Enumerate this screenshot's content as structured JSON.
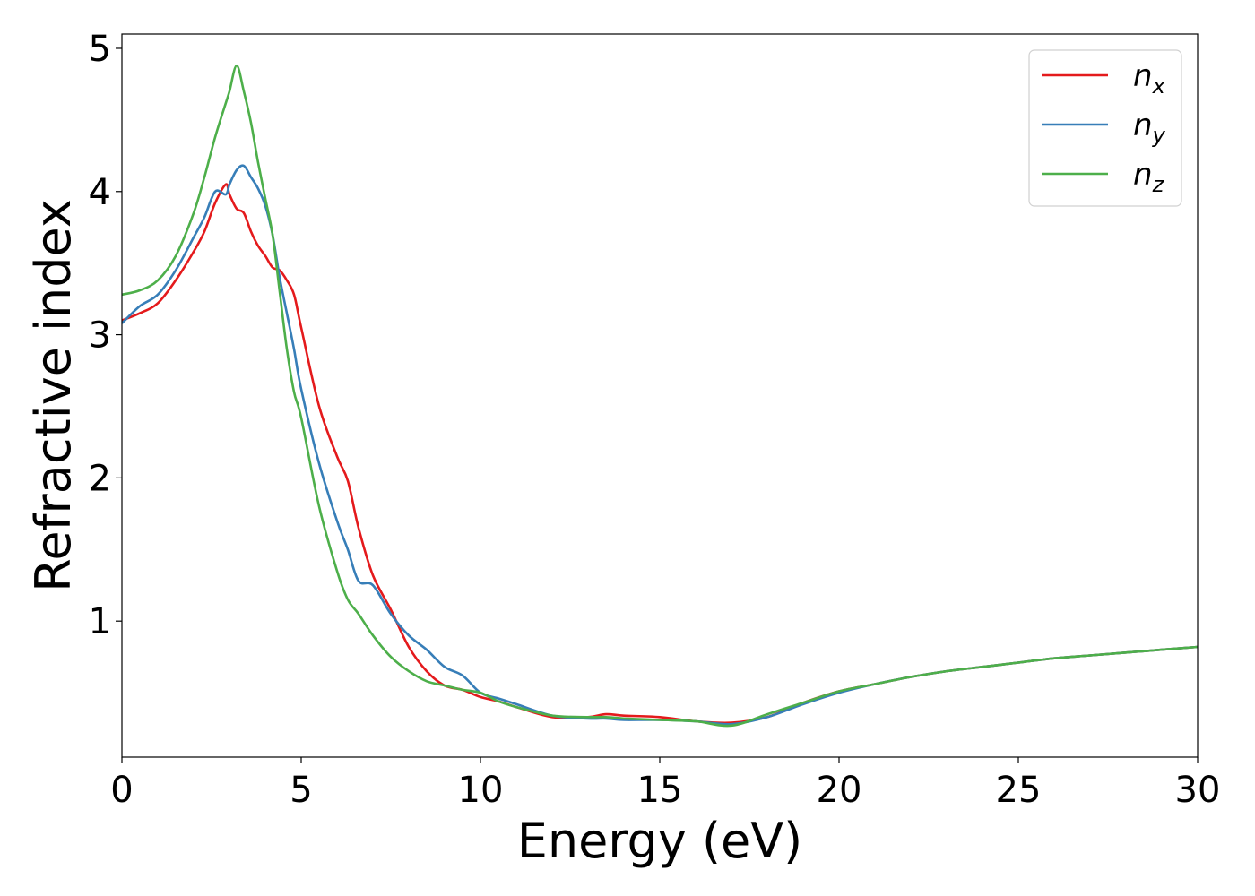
{
  "chart_data": {
    "type": "line",
    "title": "",
    "xlabel": "Energy (eV)",
    "ylabel": "Refractive index",
    "xlim": [
      0,
      30
    ],
    "ylim": [
      0.05,
      5.1
    ],
    "xticks": [
      0,
      5,
      10,
      15,
      20,
      25,
      30
    ],
    "yticks": [
      1,
      2,
      3,
      4,
      5
    ],
    "grid": false,
    "legend_position": "top-right",
    "series": [
      {
        "name": "n",
        "subscript": "x",
        "color": "#e41a1c",
        "x": [
          0,
          0.5,
          1.0,
          1.5,
          2.0,
          2.3,
          2.6,
          2.9,
          3.0,
          3.2,
          3.4,
          3.6,
          3.8,
          4.0,
          4.2,
          4.4,
          4.6,
          4.8,
          5.0,
          5.5,
          6.0,
          6.3,
          6.6,
          7.0,
          7.5,
          8.0,
          8.5,
          9.0,
          9.5,
          10.0,
          10.5,
          11.0,
          12.0,
          13.0,
          13.5,
          14.0,
          15.0,
          16.0,
          17.0,
          18.0,
          19.0,
          20.0,
          21.0,
          22.0,
          23.0,
          24.0,
          25.0,
          26.0,
          27.0,
          28.0,
          29.0,
          30.0
        ],
        "values": [
          3.1,
          3.15,
          3.22,
          3.38,
          3.58,
          3.72,
          3.92,
          4.05,
          3.98,
          3.88,
          3.85,
          3.72,
          3.62,
          3.55,
          3.47,
          3.45,
          3.38,
          3.28,
          3.05,
          2.5,
          2.15,
          1.98,
          1.65,
          1.32,
          1.08,
          0.82,
          0.65,
          0.55,
          0.52,
          0.47,
          0.44,
          0.4,
          0.33,
          0.33,
          0.35,
          0.34,
          0.33,
          0.3,
          0.29,
          0.33,
          0.43,
          0.51,
          0.56,
          0.61,
          0.65,
          0.68,
          0.71,
          0.74,
          0.76,
          0.78,
          0.8,
          0.82
        ]
      },
      {
        "name": "n",
        "subscript": "y",
        "color": "#377eb8",
        "x": [
          0,
          0.5,
          1.0,
          1.5,
          2.0,
          2.3,
          2.6,
          2.9,
          3.0,
          3.2,
          3.4,
          3.6,
          3.8,
          4.0,
          4.2,
          4.4,
          4.6,
          4.8,
          5.0,
          5.5,
          6.0,
          6.3,
          6.6,
          7.0,
          7.5,
          8.0,
          8.5,
          9.0,
          9.5,
          10.0,
          10.5,
          11.0,
          12.0,
          13.0,
          13.5,
          14.0,
          15.0,
          16.0,
          17.0,
          18.0,
          19.0,
          20.0,
          21.0,
          22.0,
          23.0,
          24.0,
          25.0,
          26.0,
          27.0,
          28.0,
          29.0,
          30.0
        ],
        "values": [
          3.08,
          3.2,
          3.28,
          3.45,
          3.68,
          3.82,
          4.0,
          3.98,
          4.05,
          4.15,
          4.18,
          4.1,
          4.02,
          3.9,
          3.7,
          3.4,
          3.15,
          2.9,
          2.62,
          2.1,
          1.7,
          1.5,
          1.28,
          1.25,
          1.05,
          0.9,
          0.8,
          0.68,
          0.62,
          0.5,
          0.46,
          0.42,
          0.34,
          0.32,
          0.32,
          0.31,
          0.31,
          0.3,
          0.28,
          0.33,
          0.42,
          0.5,
          0.56,
          0.61,
          0.65,
          0.68,
          0.71,
          0.74,
          0.76,
          0.78,
          0.8,
          0.82
        ]
      },
      {
        "name": "n",
        "subscript": "z",
        "color": "#4daf4a",
        "x": [
          0,
          0.5,
          1.0,
          1.5,
          2.0,
          2.3,
          2.6,
          2.9,
          3.0,
          3.2,
          3.4,
          3.6,
          3.8,
          4.0,
          4.2,
          4.4,
          4.6,
          4.8,
          5.0,
          5.5,
          6.0,
          6.3,
          6.6,
          7.0,
          7.5,
          8.0,
          8.5,
          9.0,
          9.5,
          10.0,
          10.5,
          11.0,
          12.0,
          13.0,
          13.5,
          14.0,
          15.0,
          16.0,
          17.0,
          18.0,
          19.0,
          20.0,
          21.0,
          22.0,
          23.0,
          24.0,
          25.0,
          26.0,
          27.0,
          28.0,
          29.0,
          30.0
        ],
        "values": [
          3.28,
          3.31,
          3.38,
          3.55,
          3.85,
          4.1,
          4.38,
          4.62,
          4.7,
          4.88,
          4.7,
          4.48,
          4.2,
          3.95,
          3.7,
          3.3,
          2.9,
          2.6,
          2.42,
          1.8,
          1.35,
          1.15,
          1.05,
          0.9,
          0.75,
          0.65,
          0.58,
          0.55,
          0.52,
          0.5,
          0.44,
          0.4,
          0.34,
          0.33,
          0.33,
          0.32,
          0.31,
          0.3,
          0.27,
          0.35,
          0.43,
          0.51,
          0.56,
          0.61,
          0.65,
          0.68,
          0.71,
          0.74,
          0.76,
          0.78,
          0.8,
          0.82
        ]
      }
    ]
  }
}
